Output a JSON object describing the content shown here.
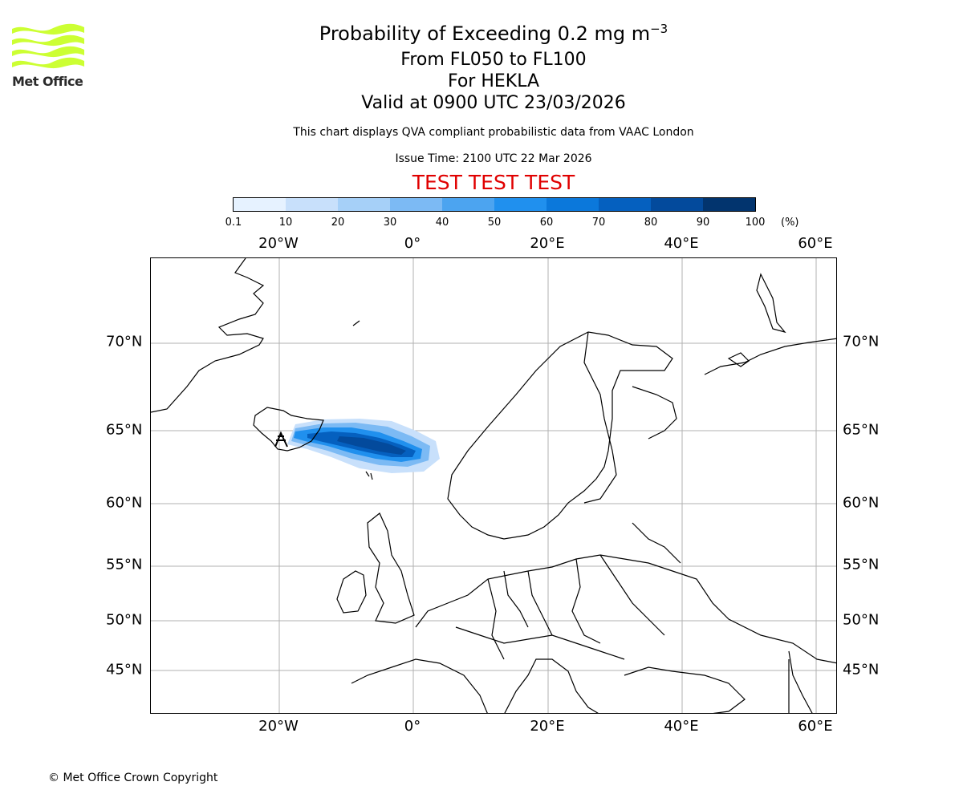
{
  "header": {
    "title_main": "Probability of Exceeding 0.2 mg m",
    "title_exponent": "−3",
    "flight_levels": "From FL050 to FL100",
    "volcano": "For HEKLA",
    "valid_time": "Valid at 0900 UTC 23/03/2026",
    "description": "This chart displays QVA compliant probabilistic data from VAAC London",
    "issue_time": "Issue Time: 2100 UTC 22 Mar 2026",
    "test_banner": "TEST TEST TEST",
    "test_color": "#e00000"
  },
  "logo": {
    "text": "Met Office",
    "color": "#ccff33"
  },
  "colorbar": {
    "ticks": [
      "0.1",
      "10",
      "20",
      "30",
      "40",
      "50",
      "60",
      "70",
      "80",
      "90",
      "100"
    ],
    "unit": "(%)",
    "colors": [
      "#e6f2ff",
      "#c8e0fb",
      "#a6d0f8",
      "#7cbaf4",
      "#4ca4f0",
      "#2090ee",
      "#0b78db",
      "#0560bf",
      "#034a9c",
      "#02346e"
    ]
  },
  "map": {
    "lon_labels": [
      "20°W",
      "0°",
      "20°E",
      "40°E",
      "60°E"
    ],
    "lat_labels": [
      "70°N",
      "65°N",
      "60°N",
      "55°N",
      "50°N",
      "45°N"
    ],
    "volcano_marker": "volcano-icon"
  },
  "footer": {
    "copyright": "© Met Office Crown Copyright"
  }
}
